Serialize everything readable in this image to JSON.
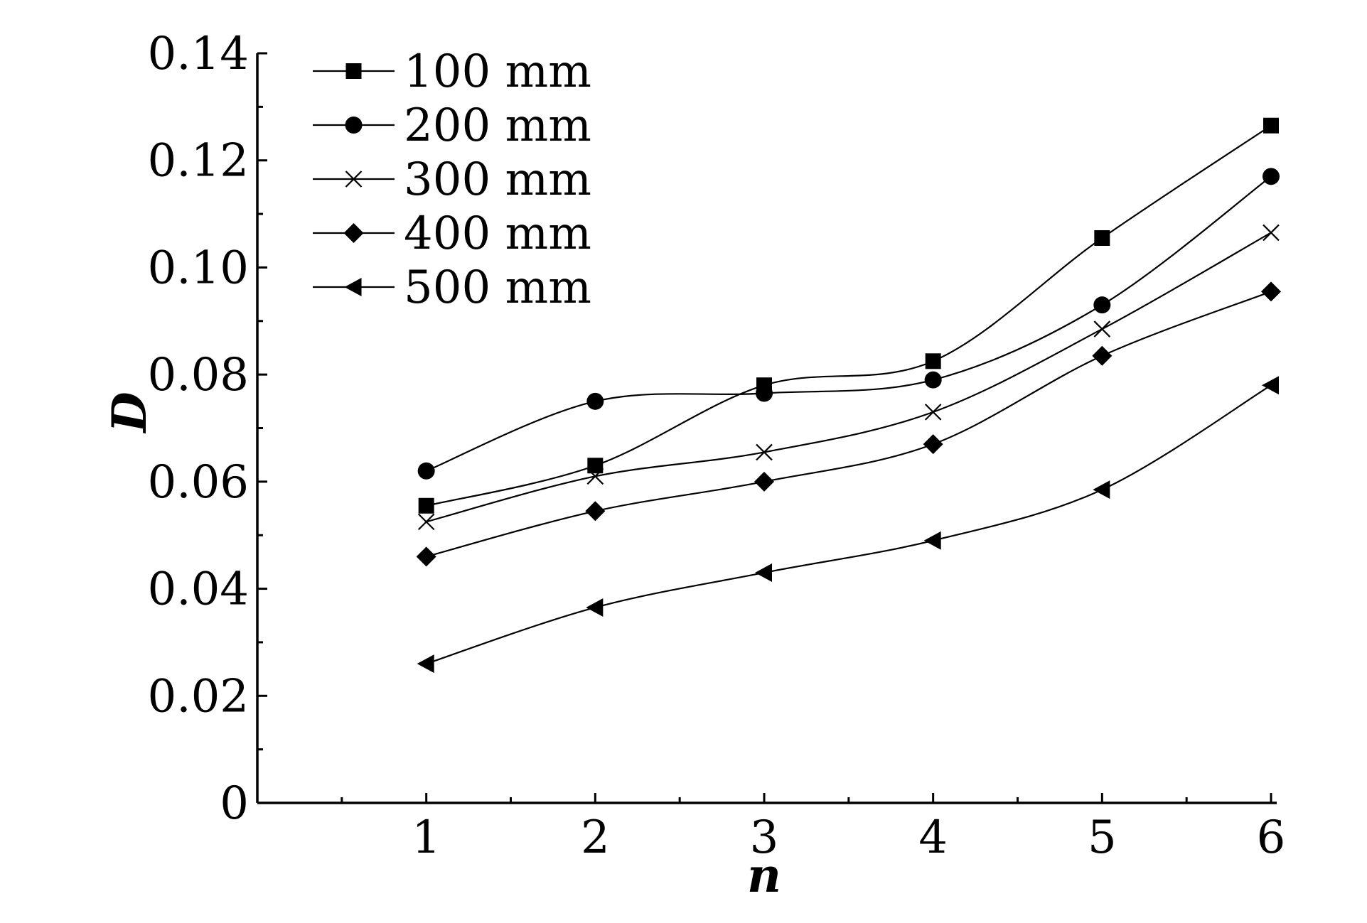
{
  "chart_data": {
    "type": "line",
    "xlabel": "n",
    "ylabel": "D",
    "xlim": [
      0,
      6
    ],
    "ylim": [
      0,
      0.14
    ],
    "x_ticks": [
      1,
      2,
      3,
      4,
      5,
      6
    ],
    "y_ticks": [
      0,
      0.02,
      0.04,
      0.06,
      0.08,
      0.1,
      0.12,
      0.14
    ],
    "y_tick_labels": [
      "0",
      "0.02",
      "0.04",
      "0.06",
      "0.08",
      "0.10",
      "0.12",
      "0.14"
    ],
    "x_tick_labels": [
      "1",
      "2",
      "3",
      "4",
      "5",
      "6"
    ],
    "legend_position": "top-left",
    "grid": false,
    "series": [
      {
        "name": "100 mm",
        "marker": "square",
        "x": [
          1,
          2,
          3,
          4,
          5,
          6
        ],
        "values": [
          0.0555,
          0.063,
          0.078,
          0.0825,
          0.1055,
          0.1265
        ]
      },
      {
        "name": "200 mm",
        "marker": "circle",
        "x": [
          1,
          2,
          3,
          4,
          5,
          6
        ],
        "values": [
          0.062,
          0.075,
          0.0765,
          0.079,
          0.093,
          0.117
        ]
      },
      {
        "name": "300 mm",
        "marker": "x",
        "x": [
          1,
          2,
          3,
          4,
          5,
          6
        ],
        "values": [
          0.0525,
          0.061,
          0.0655,
          0.073,
          0.0885,
          0.1065
        ]
      },
      {
        "name": "400 mm",
        "marker": "diamond",
        "x": [
          1,
          2,
          3,
          4,
          5,
          6
        ],
        "values": [
          0.046,
          0.0545,
          0.06,
          0.067,
          0.0835,
          0.0955
        ]
      },
      {
        "name": "500 mm",
        "marker": "triangle-left",
        "x": [
          1,
          2,
          3,
          4,
          5,
          6
        ],
        "values": [
          0.026,
          0.0365,
          0.043,
          0.049,
          0.0585,
          0.078
        ]
      }
    ]
  }
}
